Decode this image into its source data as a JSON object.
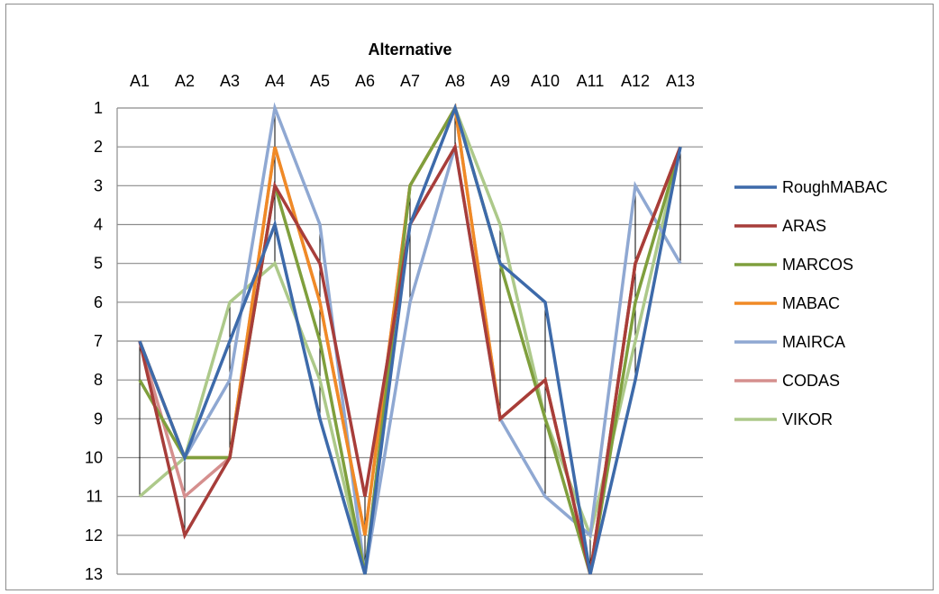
{
  "chart_data": {
    "type": "line",
    "title": "Alternative",
    "title_position": "top",
    "xlabel": "",
    "ylabel": "",
    "x_axis_position": "top",
    "y_axis_reversed": true,
    "ylim": [
      1,
      13
    ],
    "yticks": [
      1,
      2,
      3,
      4,
      5,
      6,
      7,
      8,
      9,
      10,
      11,
      12,
      13
    ],
    "categories": [
      "A1",
      "A2",
      "A3",
      "A4",
      "A5",
      "A6",
      "A7",
      "A8",
      "A9",
      "A10",
      "A11",
      "A12",
      "A13"
    ],
    "grid": true,
    "high_low_lines": true,
    "legend": "right",
    "series": [
      {
        "name": "RoughMABAC",
        "color": "#3D6AAA",
        "values": [
          7,
          10,
          7,
          4,
          9,
          13,
          4,
          1,
          5,
          6,
          13,
          8,
          2
        ]
      },
      {
        "name": "ARAS",
        "color": "#A73D3A",
        "values": [
          7,
          12,
          10,
          3,
          5,
          11,
          4,
          2,
          9,
          8,
          13,
          5,
          2
        ]
      },
      {
        "name": "MARCOS",
        "color": "#7F9F3D",
        "values": [
          8,
          10,
          10,
          3,
          7,
          13,
          3,
          1,
          5,
          9,
          13,
          6,
          2
        ]
      },
      {
        "name": "MABAC",
        "color": "#F08A26",
        "values": [
          7,
          10,
          10,
          2,
          6,
          12,
          3,
          1,
          9,
          8,
          13,
          5,
          2
        ]
      },
      {
        "name": "MAIRCA",
        "color": "#8FA8D2",
        "values": [
          7,
          10,
          8,
          1,
          4,
          13,
          6,
          2,
          9,
          11,
          12,
          3,
          5
        ]
      },
      {
        "name": "CODAS",
        "color": "#D58F8E",
        "values": [
          7,
          11,
          10,
          2,
          6,
          12,
          3,
          1,
          9,
          8,
          13,
          5,
          2
        ]
      },
      {
        "name": "VIKOR",
        "color": "#ADC98A",
        "values": [
          11,
          10,
          6,
          5,
          8,
          13,
          3,
          1,
          4,
          9,
          12,
          7,
          2
        ]
      }
    ]
  }
}
